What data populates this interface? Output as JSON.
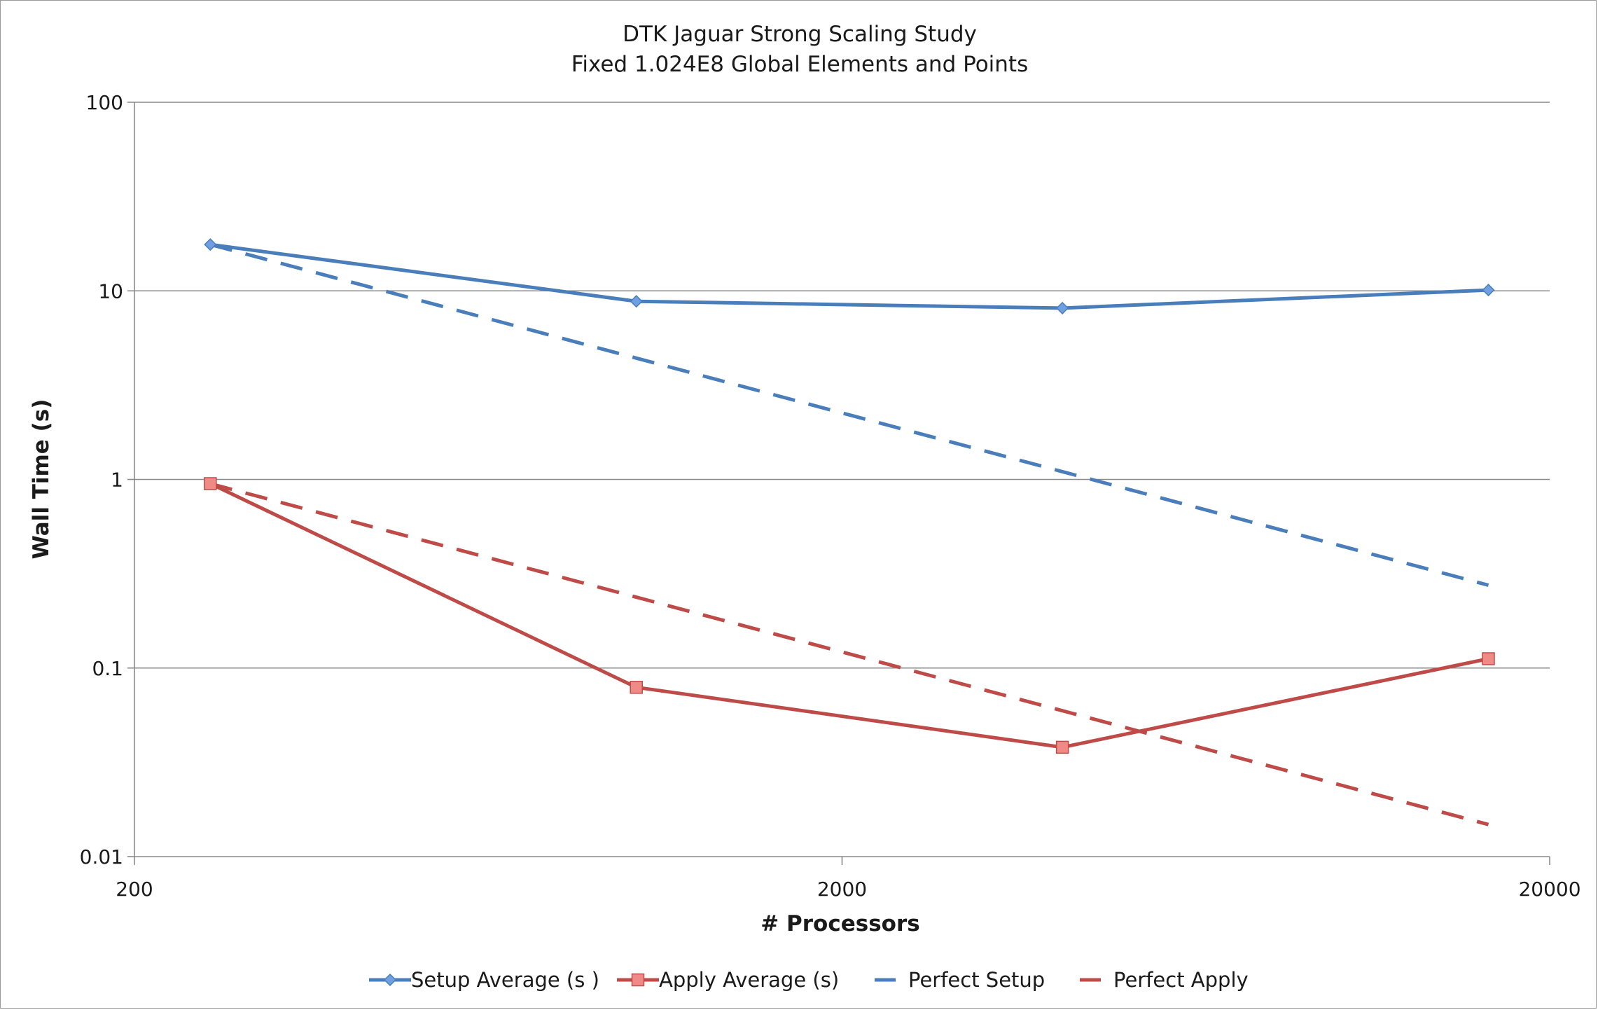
{
  "chart_data": {
    "type": "line",
    "title": [
      "DTK Jaguar Strong Scaling Study",
      "Fixed 1.024E8 Global Elements and Points"
    ],
    "xlabel": "# Processors",
    "ylabel": "Wall Time (s)",
    "xscale": "log",
    "yscale": "log",
    "xlim": [
      200,
      20000
    ],
    "ylim": [
      0.01,
      100
    ],
    "x_ticks": [
      {
        "value": 200,
        "label": "200"
      },
      {
        "value": 2000,
        "label": "2000"
      },
      {
        "value": 20000,
        "label": "20000"
      }
    ],
    "y_ticks": [
      {
        "value": 100,
        "label": "100"
      },
      {
        "value": 10,
        "label": "10"
      },
      {
        "value": 1,
        "label": "1"
      },
      {
        "value": 0.1,
        "label": "0.1"
      },
      {
        "value": 0.01,
        "label": "0.01"
      }
    ],
    "grid": {
      "horizontal": true,
      "vertical": false
    },
    "legend_position": "bottom",
    "series": [
      {
        "name": "Setup Average (s )",
        "color": "#4a7ebb",
        "style": "solid",
        "marker": "diamond",
        "x": [
          256,
          1024,
          4096,
          16384
        ],
        "y": [
          17.6,
          8.8,
          8.1,
          10.1
        ]
      },
      {
        "name": "Apply Average (s)",
        "color": "#be4b48",
        "style": "solid",
        "marker": "square",
        "x": [
          256,
          1024,
          4096,
          16384
        ],
        "y": [
          0.95,
          0.079,
          0.038,
          0.112
        ]
      },
      {
        "name": "Perfect Setup",
        "color": "#4a7ebb",
        "style": "dashed",
        "marker": "none",
        "x": [
          256,
          1024,
          4096,
          16384
        ],
        "y": [
          17.6,
          4.4,
          1.1,
          0.275
        ]
      },
      {
        "name": "Perfect Apply",
        "color": "#be4b48",
        "style": "dashed",
        "marker": "none",
        "x": [
          256,
          1024,
          4096,
          16384
        ],
        "y": [
          0.95,
          0.2375,
          0.0594,
          0.0148
        ]
      }
    ]
  }
}
